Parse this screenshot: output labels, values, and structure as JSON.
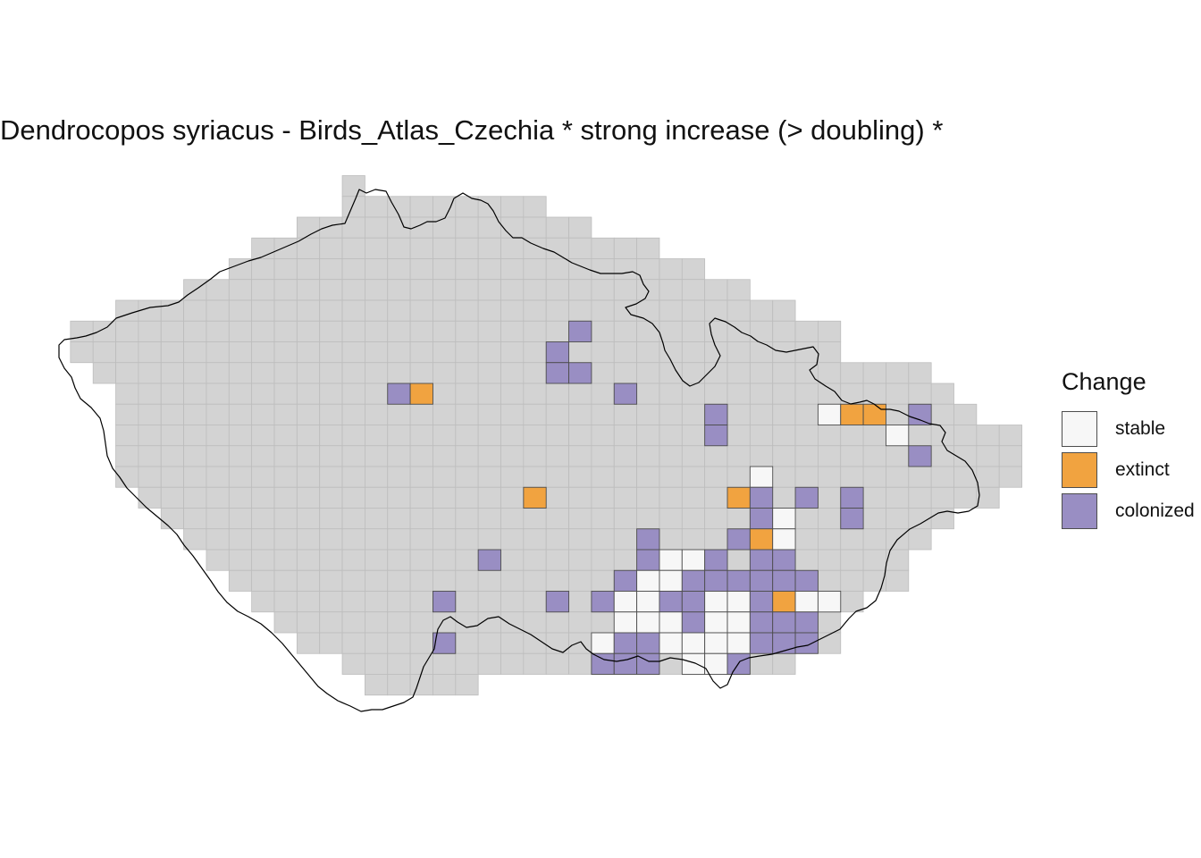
{
  "title": "Dendrocopos syriacus - Birds_Atlas_Czechia * strong increase (> doubling) *",
  "legend": {
    "title": "Change",
    "items": [
      {
        "key": "stable",
        "label": "stable",
        "color": "#f7f7f7"
      },
      {
        "key": "extinct",
        "label": "extinct",
        "color": "#f1a340"
      },
      {
        "key": "colonized",
        "label": "colonized",
        "color": "#998ec3"
      }
    ]
  },
  "colors": {
    "grid_fill": "#d3d3d3",
    "grid_line": "#bdbdbd",
    "cell_border": "#4d4d4d",
    "border_line": "#000000"
  },
  "map_data": {
    "grid": {
      "rows": 25,
      "cols": 43,
      "row_extents": [
        [
          13,
          13
        ],
        [
          13,
          21
        ],
        [
          11,
          23
        ],
        [
          9,
          26
        ],
        [
          8,
          28
        ],
        [
          6,
          30
        ],
        [
          3,
          32
        ],
        [
          1,
          34
        ],
        [
          1,
          34
        ],
        [
          2,
          38
        ],
        [
          3,
          39
        ],
        [
          3,
          40
        ],
        [
          3,
          42
        ],
        [
          3,
          42
        ],
        [
          3,
          42
        ],
        [
          4,
          41
        ],
        [
          5,
          39
        ],
        [
          6,
          38
        ],
        [
          7,
          37
        ],
        [
          8,
          37
        ],
        [
          9,
          35
        ],
        [
          10,
          34
        ],
        [
          11,
          34
        ],
        [
          13,
          32
        ],
        [
          14,
          18
        ]
      ]
    },
    "cells": [
      {
        "row": 7,
        "col": 23,
        "status": "colonized"
      },
      {
        "row": 8,
        "col": 22,
        "status": "colonized"
      },
      {
        "row": 9,
        "col": 22,
        "status": "colonized"
      },
      {
        "row": 9,
        "col": 23,
        "status": "colonized"
      },
      {
        "row": 10,
        "col": 15,
        "status": "colonized"
      },
      {
        "row": 10,
        "col": 16,
        "status": "extinct"
      },
      {
        "row": 10,
        "col": 25,
        "status": "colonized"
      },
      {
        "row": 11,
        "col": 29,
        "status": "colonized"
      },
      {
        "row": 11,
        "col": 34,
        "status": "stable"
      },
      {
        "row": 11,
        "col": 35,
        "status": "extinct"
      },
      {
        "row": 11,
        "col": 36,
        "status": "extinct"
      },
      {
        "row": 11,
        "col": 38,
        "status": "colonized"
      },
      {
        "row": 12,
        "col": 29,
        "status": "colonized"
      },
      {
        "row": 12,
        "col": 37,
        "status": "stable"
      },
      {
        "row": 13,
        "col": 38,
        "status": "colonized"
      },
      {
        "row": 14,
        "col": 31,
        "status": "stable"
      },
      {
        "row": 15,
        "col": 21,
        "status": "extinct"
      },
      {
        "row": 15,
        "col": 30,
        "status": "extinct"
      },
      {
        "row": 15,
        "col": 31,
        "status": "colonized"
      },
      {
        "row": 15,
        "col": 33,
        "status": "colonized"
      },
      {
        "row": 15,
        "col": 35,
        "status": "colonized"
      },
      {
        "row": 16,
        "col": 31,
        "status": "colonized"
      },
      {
        "row": 16,
        "col": 32,
        "status": "stable"
      },
      {
        "row": 16,
        "col": 35,
        "status": "colonized"
      },
      {
        "row": 17,
        "col": 26,
        "status": "colonized"
      },
      {
        "row": 17,
        "col": 30,
        "status": "colonized"
      },
      {
        "row": 17,
        "col": 31,
        "status": "extinct"
      },
      {
        "row": 17,
        "col": 32,
        "status": "stable"
      },
      {
        "row": 18,
        "col": 19,
        "status": "colonized"
      },
      {
        "row": 18,
        "col": 26,
        "status": "colonized"
      },
      {
        "row": 18,
        "col": 27,
        "status": "stable"
      },
      {
        "row": 18,
        "col": 28,
        "status": "stable"
      },
      {
        "row": 18,
        "col": 29,
        "status": "colonized"
      },
      {
        "row": 18,
        "col": 31,
        "status": "colonized"
      },
      {
        "row": 18,
        "col": 32,
        "status": "colonized"
      },
      {
        "row": 19,
        "col": 25,
        "status": "colonized"
      },
      {
        "row": 19,
        "col": 26,
        "status": "stable"
      },
      {
        "row": 19,
        "col": 27,
        "status": "stable"
      },
      {
        "row": 19,
        "col": 28,
        "status": "colonized"
      },
      {
        "row": 19,
        "col": 29,
        "status": "colonized"
      },
      {
        "row": 19,
        "col": 30,
        "status": "colonized"
      },
      {
        "row": 19,
        "col": 31,
        "status": "colonized"
      },
      {
        "row": 19,
        "col": 32,
        "status": "colonized"
      },
      {
        "row": 19,
        "col": 33,
        "status": "colonized"
      },
      {
        "row": 20,
        "col": 17,
        "status": "colonized"
      },
      {
        "row": 20,
        "col": 22,
        "status": "colonized"
      },
      {
        "row": 20,
        "col": 24,
        "status": "colonized"
      },
      {
        "row": 20,
        "col": 25,
        "status": "stable"
      },
      {
        "row": 20,
        "col": 26,
        "status": "stable"
      },
      {
        "row": 20,
        "col": 27,
        "status": "colonized"
      },
      {
        "row": 20,
        "col": 28,
        "status": "colonized"
      },
      {
        "row": 20,
        "col": 29,
        "status": "stable"
      },
      {
        "row": 20,
        "col": 30,
        "status": "stable"
      },
      {
        "row": 20,
        "col": 31,
        "status": "colonized"
      },
      {
        "row": 20,
        "col": 32,
        "status": "extinct"
      },
      {
        "row": 20,
        "col": 33,
        "status": "stable"
      },
      {
        "row": 20,
        "col": 34,
        "status": "stable"
      },
      {
        "row": 21,
        "col": 25,
        "status": "stable"
      },
      {
        "row": 21,
        "col": 26,
        "status": "stable"
      },
      {
        "row": 21,
        "col": 27,
        "status": "stable"
      },
      {
        "row": 21,
        "col": 28,
        "status": "colonized"
      },
      {
        "row": 21,
        "col": 29,
        "status": "stable"
      },
      {
        "row": 21,
        "col": 30,
        "status": "stable"
      },
      {
        "row": 21,
        "col": 31,
        "status": "colonized"
      },
      {
        "row": 21,
        "col": 32,
        "status": "colonized"
      },
      {
        "row": 21,
        "col": 33,
        "status": "colonized"
      },
      {
        "row": 22,
        "col": 17,
        "status": "colonized"
      },
      {
        "row": 22,
        "col": 24,
        "status": "stable"
      },
      {
        "row": 22,
        "col": 25,
        "status": "colonized"
      },
      {
        "row": 22,
        "col": 26,
        "status": "colonized"
      },
      {
        "row": 22,
        "col": 27,
        "status": "stable"
      },
      {
        "row": 22,
        "col": 28,
        "status": "stable"
      },
      {
        "row": 22,
        "col": 29,
        "status": "stable"
      },
      {
        "row": 22,
        "col": 30,
        "status": "stable"
      },
      {
        "row": 22,
        "col": 31,
        "status": "colonized"
      },
      {
        "row": 22,
        "col": 32,
        "status": "colonized"
      },
      {
        "row": 22,
        "col": 33,
        "status": "colonized"
      },
      {
        "row": 23,
        "col": 24,
        "status": "colonized"
      },
      {
        "row": 23,
        "col": 25,
        "status": "colonized"
      },
      {
        "row": 23,
        "col": 26,
        "status": "colonized"
      },
      {
        "row": 23,
        "col": 28,
        "status": "stable"
      },
      {
        "row": 23,
        "col": 29,
        "status": "stable"
      },
      {
        "row": 23,
        "col": 30,
        "status": "colonized"
      }
    ]
  }
}
